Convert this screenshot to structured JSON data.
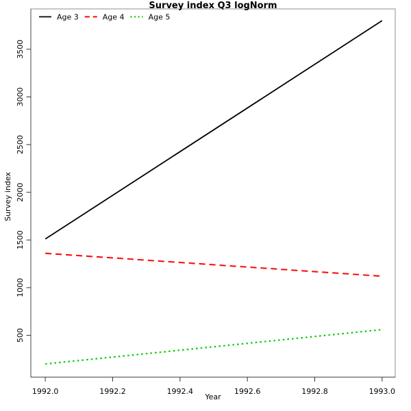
{
  "chart_data": {
    "type": "line",
    "title": "Survey index Q3 logNorm",
    "xlabel": "Year",
    "ylabel": "Survey index",
    "xlim": [
      1991.957,
      1993.039
    ],
    "ylim": [
      62,
      3923
    ],
    "x_ticks": [
      1992.0,
      1992.2,
      1992.4,
      1992.6,
      1992.8,
      1993.0
    ],
    "x_tick_labels": [
      "1992.0",
      "1992.2",
      "1992.4",
      "1992.6",
      "1992.8",
      "1993.0"
    ],
    "y_ticks": [
      500,
      1000,
      1500,
      2000,
      2500,
      3000,
      3500
    ],
    "y_tick_labels": [
      "500",
      "1000",
      "1500",
      "2000",
      "2500",
      "3000",
      "3500"
    ],
    "grid": false,
    "legend_position": "top-left-inside",
    "x": [
      1992.0,
      1993.0
    ],
    "series": [
      {
        "name": "Age 3",
        "values": [
          1510,
          3800
        ],
        "color": "#000000",
        "line_style": "solid"
      },
      {
        "name": "Age 4",
        "values": [
          1360,
          1120
        ],
        "color": "#ff0000",
        "line_style": "dashed"
      },
      {
        "name": "Age 5",
        "values": [
          200,
          560
        ],
        "color": "#00cd00",
        "line_style": "dotted"
      }
    ],
    "colors": {
      "plot_background": "#ffffff",
      "box_border": "#8f8f8f",
      "axis_line": "#454545",
      "tick": "#333333",
      "text": "#000000"
    }
  }
}
